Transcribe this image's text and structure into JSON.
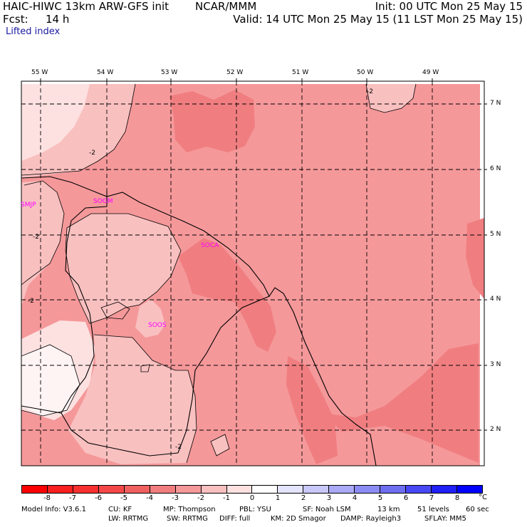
{
  "header": {
    "model": "HAIC-HIWC 13km ARW-GFS init",
    "org": "NCAR/MMM",
    "init": "Init: 00 UTC Mon 25 May 15",
    "fcst_label": "Fcst:",
    "fcst_value": "14 h",
    "valid": "Valid: 14 UTC Mon 25 May 15 (11 LST Mon 25 May 15)",
    "field": "Lifted index"
  },
  "map": {
    "lon_labels": [
      "55 W",
      "54 W",
      "53 W",
      "52 W",
      "51 W",
      "50 W",
      "49 W"
    ],
    "lat_labels": [
      "7 N",
      "6 N",
      "5 N",
      "4 N",
      "3 N",
      "2 N"
    ],
    "contour_labels": [
      "-2",
      "-2",
      "-2",
      "-2",
      "-2"
    ],
    "stations": [
      "SMJP",
      "SOGM",
      "SOCA",
      "SOOS"
    ],
    "station_color": "#ff00ff",
    "fill_colors": {
      "-4": "#f07e80",
      "-3": "#f5989a",
      "-2": "#f9c0c0",
      "-1": "#fde1e1",
      "0": "#fff4f4"
    }
  },
  "colorbar": {
    "tick_labels": [
      "-8",
      "-7",
      "-6",
      "-5",
      "-4",
      "-3",
      "-2",
      "-1",
      "0",
      "1",
      "2",
      "3",
      "4",
      "5",
      "6",
      "7",
      "8"
    ],
    "unit": "°C",
    "colors": [
      "#ff0000",
      "#fa2020",
      "#f73030",
      "#f44848",
      "#f06060",
      "#f07e80",
      "#f5989a",
      "#f9c0c0",
      "#fde1e1",
      "#ffffff",
      "#e4e4fd",
      "#c8c8fa",
      "#aaaaf7",
      "#8c8cf4",
      "#6e6ef1",
      "#4848f4",
      "#2020f7",
      "#0000ff"
    ]
  },
  "footer": {
    "line1": [
      "Model Info: V3.6.1",
      "CU: KF",
      "MP: Thompson",
      "PBL: YSU",
      "SF: Noah LSM",
      "13 km",
      "51 levels",
      "60 sec"
    ],
    "line2": [
      "LW: RRTMG",
      "SW: RRTMG",
      "DIFF: full",
      "KM: 2D Smagor",
      "DAMP: Rayleigh3",
      "SFLAY: MM5"
    ]
  }
}
